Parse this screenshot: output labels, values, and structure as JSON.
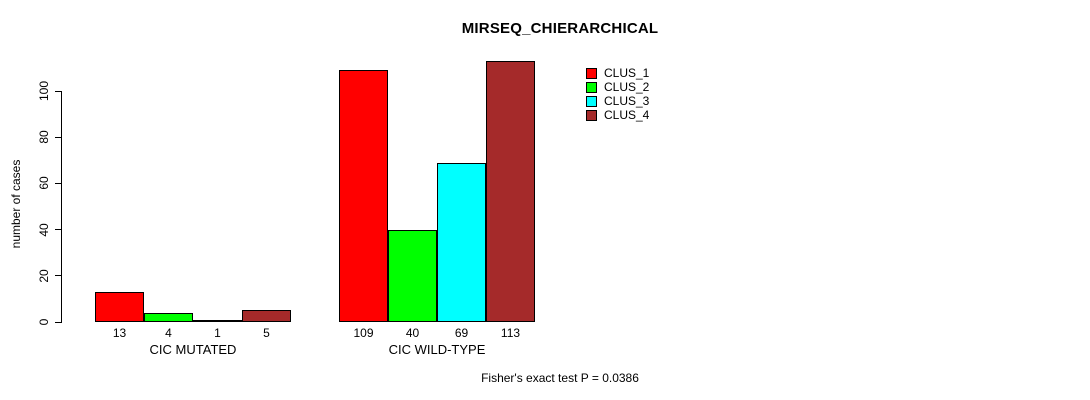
{
  "chart_data": {
    "type": "bar",
    "title": "MIRSEQ_CHIERARCHICAL",
    "ylabel": "number of cases",
    "xlabel": "",
    "categories": [
      "CIC MUTATED",
      "CIC WILD-TYPE"
    ],
    "series": [
      {
        "name": "CLUS_1",
        "color": "#FF0000",
        "values": [
          13,
          109
        ]
      },
      {
        "name": "CLUS_2",
        "color": "#00FF00",
        "values": [
          4,
          40
        ]
      },
      {
        "name": "CLUS_3",
        "color": "#00FFFF",
        "values": [
          1,
          69
        ]
      },
      {
        "name": "CLUS_4",
        "color": "#A52A2A",
        "values": [
          5,
          113
        ]
      }
    ],
    "bar_value_labels": [
      [
        13,
        4,
        1,
        5
      ],
      [
        109,
        40,
        69,
        113
      ]
    ],
    "yticks": [
      0,
      20,
      40,
      60,
      80,
      100
    ],
    "ylim": [
      0,
      115
    ],
    "grid": false,
    "legend_position": "inside-top-center-right",
    "footnote": "Fisher's exact test P = 0.0386",
    "axis_color": "#000000",
    "background_color": "#FFFFFF"
  }
}
